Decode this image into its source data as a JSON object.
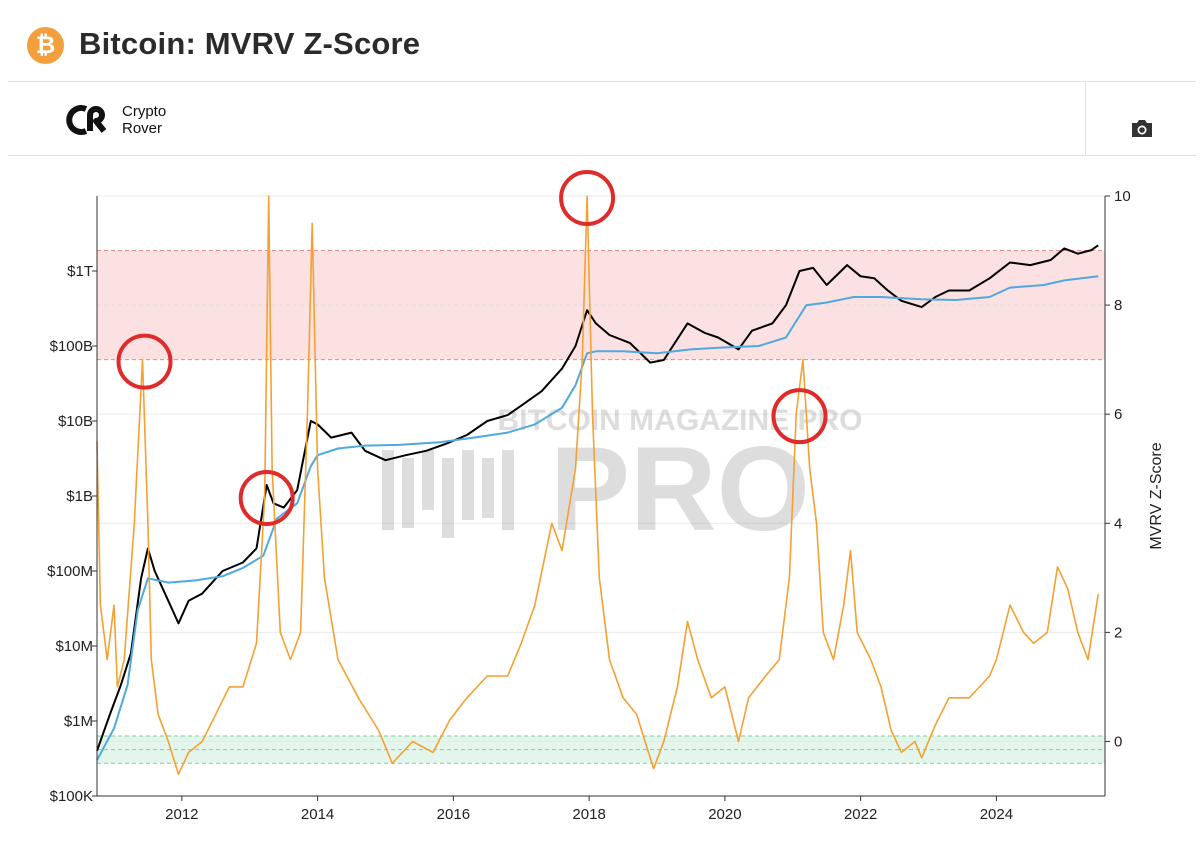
{
  "header": {
    "title": "Bitcoin: MVRV Z-Score",
    "logo_icon": "bitcoin-icon",
    "logo_glyph": "₿",
    "brand_line1": "Crypto",
    "brand_line2": "Rover",
    "camera_icon": "camera-icon"
  },
  "chart_data": {
    "type": "line",
    "x_ticks": [
      "2012",
      "2014",
      "2016",
      "2018",
      "2020",
      "2022",
      "2024"
    ],
    "y_left_ticks": [
      "$1T",
      "$100B",
      "$10B",
      "$1B",
      "$100M",
      "$10M",
      "$1M",
      "$100K"
    ],
    "y_left_scale": "log",
    "y_left_range": [
      100000,
      10000000000000
    ],
    "y_right_ticks": [
      "10",
      "8",
      "6",
      "4",
      "2",
      "0"
    ],
    "y_right_range": [
      -1,
      10
    ],
    "y_right_label": "MVRV Z-Score",
    "x_range": [
      2010.75,
      2025.6
    ],
    "watermark": "BITCOIN MAGAZINE PRO",
    "bands": [
      {
        "zone": "overvalued",
        "axis": "right",
        "from": 7,
        "to": 9,
        "color": "#fbe1e1"
      },
      {
        "zone": "undervalued",
        "axis": "right",
        "from": -0.4,
        "to": 0.1,
        "color": "#e4f6ec"
      }
    ],
    "highlight_circles_year": [
      2011.45,
      2013.25,
      2017.97,
      2021.1
    ],
    "series": [
      {
        "key": "market_cap",
        "color": "#000000",
        "axis": "left",
        "points": [
          [
            2010.75,
            400000
          ],
          [
            2010.95,
            1300000
          ],
          [
            2011.1,
            3000000
          ],
          [
            2011.25,
            8000000
          ],
          [
            2011.4,
            80000000
          ],
          [
            2011.5,
            200000000
          ],
          [
            2011.6,
            100000000
          ],
          [
            2011.8,
            40000000
          ],
          [
            2011.95,
            20000000
          ],
          [
            2012.1,
            40000000
          ],
          [
            2012.3,
            50000000
          ],
          [
            2012.6,
            100000000
          ],
          [
            2012.9,
            130000000
          ],
          [
            2013.1,
            200000000
          ],
          [
            2013.25,
            1400000000
          ],
          [
            2013.35,
            800000000
          ],
          [
            2013.5,
            700000000
          ],
          [
            2013.7,
            1200000000
          ],
          [
            2013.9,
            10000000000
          ],
          [
            2014.0,
            9000000000
          ],
          [
            2014.2,
            6000000000
          ],
          [
            2014.5,
            7000000000
          ],
          [
            2014.7,
            4000000000
          ],
          [
            2015.0,
            3000000000
          ],
          [
            2015.3,
            3500000000
          ],
          [
            2015.6,
            4000000000
          ],
          [
            2015.9,
            5000000000
          ],
          [
            2016.2,
            6500000000
          ],
          [
            2016.5,
            10000000000
          ],
          [
            2016.8,
            12000000000
          ],
          [
            2017.0,
            16000000000
          ],
          [
            2017.3,
            25000000000
          ],
          [
            2017.6,
            50000000000
          ],
          [
            2017.8,
            100000000000
          ],
          [
            2017.97,
            300000000000
          ],
          [
            2018.1,
            200000000000
          ],
          [
            2018.3,
            140000000000
          ],
          [
            2018.6,
            110000000000
          ],
          [
            2018.9,
            60000000000
          ],
          [
            2019.1,
            65000000000
          ],
          [
            2019.45,
            200000000000
          ],
          [
            2019.7,
            150000000000
          ],
          [
            2019.9,
            130000000000
          ],
          [
            2020.2,
            90000000000
          ],
          [
            2020.4,
            160000000000
          ],
          [
            2020.7,
            200000000000
          ],
          [
            2020.9,
            350000000000
          ],
          [
            2021.1,
            1000000000000
          ],
          [
            2021.3,
            1100000000000
          ],
          [
            2021.5,
            650000000000
          ],
          [
            2021.8,
            1200000000000
          ],
          [
            2022.0,
            850000000000
          ],
          [
            2022.2,
            800000000000
          ],
          [
            2022.4,
            550000000000
          ],
          [
            2022.6,
            400000000000
          ],
          [
            2022.9,
            330000000000
          ],
          [
            2023.1,
            450000000000
          ],
          [
            2023.3,
            550000000000
          ],
          [
            2023.6,
            550000000000
          ],
          [
            2023.9,
            800000000000
          ],
          [
            2024.2,
            1300000000000
          ],
          [
            2024.5,
            1200000000000
          ],
          [
            2024.8,
            1400000000000
          ],
          [
            2025.0,
            2000000000000
          ],
          [
            2025.2,
            1700000000000
          ],
          [
            2025.4,
            1900000000000
          ],
          [
            2025.5,
            2200000000000
          ]
        ]
      },
      {
        "key": "realized_cap",
        "color": "#4fa9df",
        "axis": "left",
        "points": [
          [
            2010.75,
            300000
          ],
          [
            2011.0,
            800000
          ],
          [
            2011.2,
            3000000
          ],
          [
            2011.35,
            30000000
          ],
          [
            2011.5,
            80000000
          ],
          [
            2011.8,
            70000000
          ],
          [
            2012.2,
            75000000
          ],
          [
            2012.6,
            85000000
          ],
          [
            2012.9,
            110000000
          ],
          [
            2013.2,
            160000000
          ],
          [
            2013.4,
            500000000
          ],
          [
            2013.7,
            800000000
          ],
          [
            2013.9,
            2500000000
          ],
          [
            2014.0,
            3500000000
          ],
          [
            2014.3,
            4300000000
          ],
          [
            2014.7,
            4700000000
          ],
          [
            2015.2,
            4800000000
          ],
          [
            2015.8,
            5200000000
          ],
          [
            2016.3,
            6000000000
          ],
          [
            2016.8,
            7000000000
          ],
          [
            2017.2,
            9000000000
          ],
          [
            2017.6,
            15000000000
          ],
          [
            2017.8,
            30000000000
          ],
          [
            2017.97,
            80000000000
          ],
          [
            2018.1,
            85000000000
          ],
          [
            2018.5,
            85000000000
          ],
          [
            2019.0,
            80000000000
          ],
          [
            2019.5,
            90000000000
          ],
          [
            2019.9,
            95000000000
          ],
          [
            2020.5,
            100000000000
          ],
          [
            2020.9,
            130000000000
          ],
          [
            2021.2,
            350000000000
          ],
          [
            2021.5,
            380000000000
          ],
          [
            2021.9,
            450000000000
          ],
          [
            2022.3,
            450000000000
          ],
          [
            2022.9,
            420000000000
          ],
          [
            2023.4,
            410000000000
          ],
          [
            2023.9,
            450000000000
          ],
          [
            2024.2,
            600000000000
          ],
          [
            2024.7,
            650000000000
          ],
          [
            2025.0,
            750000000000
          ],
          [
            2025.5,
            850000000000
          ]
        ]
      },
      {
        "key": "mvrv_z_score",
        "color": "#f5a032",
        "axis": "right",
        "points": [
          [
            2010.75,
            5.5
          ],
          [
            2010.8,
            2.5
          ],
          [
            2010.9,
            1.5
          ],
          [
            2011.0,
            2.5
          ],
          [
            2011.05,
            1.0
          ],
          [
            2011.15,
            1.5
          ],
          [
            2011.3,
            4.0
          ],
          [
            2011.42,
            7.0
          ],
          [
            2011.5,
            4.0
          ],
          [
            2011.55,
            1.5
          ],
          [
            2011.65,
            0.5
          ],
          [
            2011.8,
            0.0
          ],
          [
            2011.95,
            -0.6
          ],
          [
            2012.1,
            -0.2
          ],
          [
            2012.3,
            0.0
          ],
          [
            2012.5,
            0.5
          ],
          [
            2012.7,
            1.0
          ],
          [
            2012.9,
            1.0
          ],
          [
            2013.1,
            1.8
          ],
          [
            2013.22,
            4.5
          ],
          [
            2013.28,
            10.0
          ],
          [
            2013.33,
            5.0
          ],
          [
            2013.45,
            2.0
          ],
          [
            2013.6,
            1.5
          ],
          [
            2013.75,
            2.0
          ],
          [
            2013.85,
            6.0
          ],
          [
            2013.92,
            9.5
          ],
          [
            2014.0,
            5.0
          ],
          [
            2014.1,
            3.0
          ],
          [
            2014.3,
            1.5
          ],
          [
            2014.6,
            0.8
          ],
          [
            2014.9,
            0.2
          ],
          [
            2015.1,
            -0.4
          ],
          [
            2015.4,
            0.0
          ],
          [
            2015.7,
            -0.2
          ],
          [
            2015.95,
            0.4
          ],
          [
            2016.2,
            0.8
          ],
          [
            2016.5,
            1.2
          ],
          [
            2016.8,
            1.2
          ],
          [
            2017.0,
            1.8
          ],
          [
            2017.2,
            2.5
          ],
          [
            2017.45,
            4.0
          ],
          [
            2017.6,
            3.5
          ],
          [
            2017.8,
            5.0
          ],
          [
            2017.9,
            7.0
          ],
          [
            2017.97,
            10.0
          ],
          [
            2018.05,
            6.0
          ],
          [
            2018.15,
            3.0
          ],
          [
            2018.3,
            1.5
          ],
          [
            2018.5,
            0.8
          ],
          [
            2018.7,
            0.5
          ],
          [
            2018.95,
            -0.5
          ],
          [
            2019.1,
            0.0
          ],
          [
            2019.3,
            1.0
          ],
          [
            2019.45,
            2.2
          ],
          [
            2019.6,
            1.5
          ],
          [
            2019.8,
            0.8
          ],
          [
            2020.0,
            1.0
          ],
          [
            2020.2,
            0.0
          ],
          [
            2020.35,
            0.8
          ],
          [
            2020.6,
            1.2
          ],
          [
            2020.8,
            1.5
          ],
          [
            2020.95,
            3.0
          ],
          [
            2021.05,
            6.0
          ],
          [
            2021.15,
            7.0
          ],
          [
            2021.25,
            5.0
          ],
          [
            2021.35,
            4.0
          ],
          [
            2021.45,
            2.0
          ],
          [
            2021.6,
            1.5
          ],
          [
            2021.75,
            2.5
          ],
          [
            2021.85,
            3.5
          ],
          [
            2021.95,
            2.0
          ],
          [
            2022.15,
            1.5
          ],
          [
            2022.3,
            1.0
          ],
          [
            2022.45,
            0.2
          ],
          [
            2022.6,
            -0.2
          ],
          [
            2022.8,
            0.0
          ],
          [
            2022.9,
            -0.3
          ],
          [
            2023.1,
            0.3
          ],
          [
            2023.3,
            0.8
          ],
          [
            2023.6,
            0.8
          ],
          [
            2023.9,
            1.2
          ],
          [
            2024.0,
            1.5
          ],
          [
            2024.2,
            2.5
          ],
          [
            2024.4,
            2.0
          ],
          [
            2024.55,
            1.8
          ],
          [
            2024.75,
            2.0
          ],
          [
            2024.9,
            3.2
          ],
          [
            2025.05,
            2.8
          ],
          [
            2025.2,
            2.0
          ],
          [
            2025.35,
            1.5
          ],
          [
            2025.5,
            2.7
          ]
        ]
      }
    ]
  }
}
